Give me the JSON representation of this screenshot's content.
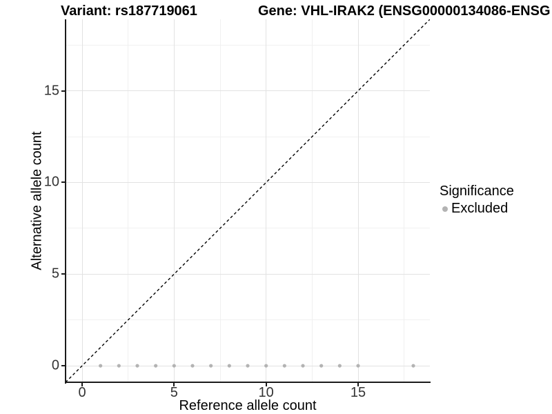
{
  "titles": {
    "variant": "Variant: rs187719061",
    "gene": "Gene: VHL-IRAK2 (ENSG00000134086-ENSG"
  },
  "chart_data": {
    "type": "scatter",
    "title_left": "Variant: rs187719061",
    "title_right": "Gene: VHL-IRAK2 (ENSG00000134086-ENSG",
    "xlabel": "Reference allele count",
    "ylabel": "Alternative allele count",
    "xlim": [
      -0.9,
      18.9
    ],
    "ylim": [
      -0.9,
      18.9
    ],
    "x_ticks": [
      0,
      5,
      10,
      15
    ],
    "y_ticks": [
      0,
      5,
      10,
      15
    ],
    "x_minor_gridlines": [
      2.5,
      7.5,
      12.5,
      17.5
    ],
    "y_minor_gridlines": [
      2.5,
      7.5,
      12.5,
      17.5
    ],
    "grid": "on",
    "identity_line": {
      "slope": 1,
      "intercept": 0,
      "style": "dashed",
      "color": "#000000"
    },
    "series": [
      {
        "name": "Excluded",
        "color": "#b3b3b3",
        "points": [
          [
            1,
            0
          ],
          [
            2,
            0
          ],
          [
            3,
            0
          ],
          [
            4,
            0
          ],
          [
            5,
            0
          ],
          [
            6,
            0
          ],
          [
            7,
            0
          ],
          [
            8,
            0
          ],
          [
            9,
            0
          ],
          [
            10,
            0
          ],
          [
            11,
            0
          ],
          [
            12,
            0
          ],
          [
            13,
            0
          ],
          [
            14,
            0
          ],
          [
            15,
            0
          ],
          [
            18,
            0
          ]
        ]
      }
    ],
    "legend": {
      "position": "right",
      "title": "Significance",
      "entries": [
        {
          "label": "Excluded",
          "color": "#b3b3b3"
        }
      ]
    }
  },
  "colors": {
    "point_gray": "#b3b3b3",
    "grid_major": "#e2e2e2",
    "grid_minor": "#f0f0f0",
    "axis": "#1a1a1a",
    "text": "#000000",
    "tick_text": "#333333"
  }
}
